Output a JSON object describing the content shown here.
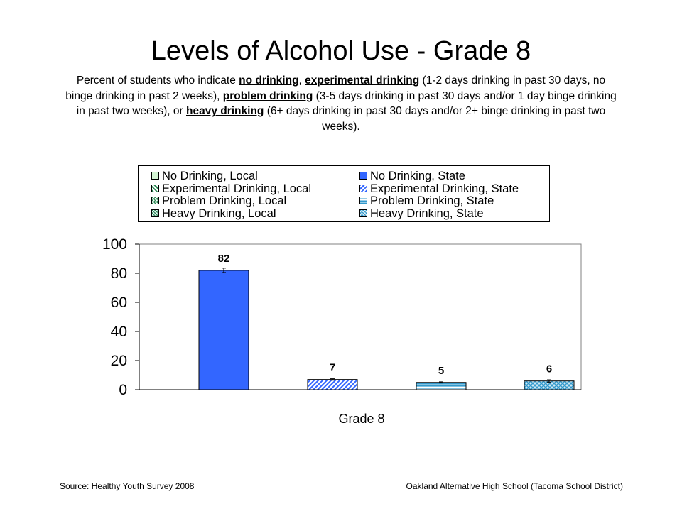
{
  "title": "Levels of Alcohol Use - Grade 8",
  "subtitle": {
    "p1": "Percent of students who indicate ",
    "t1": "no drinking",
    "p2": ", ",
    "t2": "experimental drinking",
    "p3": " (1-2 days drinking in past 30 days, no binge drinking in past 2 weeks), ",
    "t3": "problem drinking",
    "p4": " (3-5 days drinking in past 30 days and/or 1 day binge drinking in past two weeks), or ",
    "t4": "heavy drinking",
    "p5": " (6+ days drinking in past 30 days and/or 2+ binge drinking in past two weeks)."
  },
  "legend": [
    {
      "label": "No Drinking, Local",
      "pattern": "plain",
      "color": "#d4f5d4"
    },
    {
      "label": "No Drinking, State",
      "pattern": "plain",
      "color": "#3366ff"
    },
    {
      "label": "Experimental Drinking, Local",
      "pattern": "hatch-right",
      "color": "#2e8b57"
    },
    {
      "label": "Experimental Drinking, State",
      "pattern": "hatch-left",
      "color": "#3366ff"
    },
    {
      "label": "Problem Drinking, Local",
      "pattern": "cross",
      "color": "#2e8b57"
    },
    {
      "label": "Problem Drinking, State",
      "pattern": "horizontal",
      "color": "#3399cc"
    },
    {
      "label": "Heavy Drinking, Local",
      "pattern": "diamond",
      "color": "#2e8b57"
    },
    {
      "label": "Heavy Drinking, State",
      "pattern": "diamond",
      "color": "#3399cc"
    }
  ],
  "chart_data": {
    "type": "bar",
    "categories": [
      "Grade 8"
    ],
    "xlabel": "Grade 8",
    "ylim": [
      0,
      100
    ],
    "yticks": [
      "0",
      "20",
      "40",
      "60",
      "80",
      "100"
    ],
    "grid": false,
    "legend_position": "top",
    "series": [
      {
        "name": "No Drinking, State",
        "values": [
          82
        ],
        "label": "82",
        "error": 1.5,
        "color": "#3366ff",
        "pattern": "plain"
      },
      {
        "name": "Experimental Drinking, State",
        "values": [
          7
        ],
        "label": "7",
        "error": 0.5,
        "color": "#3366ff",
        "pattern": "hatch-left"
      },
      {
        "name": "Problem Drinking, State",
        "values": [
          5
        ],
        "label": "5",
        "error": 0.4,
        "color": "#3399cc",
        "pattern": "horizontal"
      },
      {
        "name": "Heavy Drinking, State",
        "values": [
          6
        ],
        "label": "6",
        "error": 0.8,
        "color": "#3399cc",
        "pattern": "diamond"
      }
    ]
  },
  "footer": {
    "source": "Source: Healthy Youth Survey 2008",
    "school": "Oakland Alternative High School (Tacoma School District)"
  }
}
